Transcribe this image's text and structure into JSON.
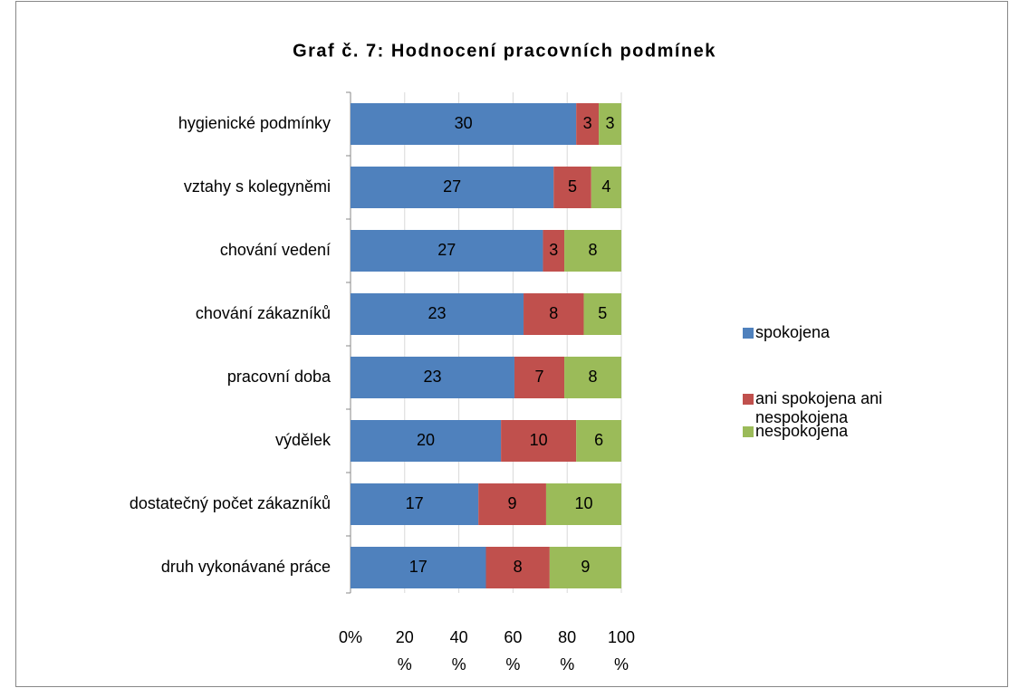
{
  "chart_data": {
    "type": "bar",
    "orientation": "horizontal",
    "stacked": "percent",
    "title": "Graf č. 7: Hodnocení pracovních podmínek",
    "categories": [
      "hygienické podmínky",
      "vztahy s kolegyněmi",
      "chování vedení",
      "chování zákazníků",
      "pracovní doba",
      "výdělek",
      "dostatečný počet zákazníků",
      "druh vykonávané práce"
    ],
    "series": [
      {
        "name": "spokojena",
        "color": "#4f81bd",
        "values": [
          30,
          27,
          27,
          23,
          23,
          20,
          17,
          17
        ]
      },
      {
        "name": "ani spokojena ani nespokojena",
        "color": "#c0504d",
        "values": [
          3,
          5,
          3,
          8,
          7,
          10,
          9,
          8
        ]
      },
      {
        "name": "nespokojena",
        "color": "#9bbb59",
        "values": [
          3,
          4,
          8,
          5,
          8,
          6,
          10,
          9
        ]
      }
    ],
    "xlim": [
      0,
      100
    ],
    "xticks": [
      {
        "value": 0,
        "label": "0%"
      },
      {
        "value": 20,
        "label": "20 %"
      },
      {
        "value": 40,
        "label": "40 %"
      },
      {
        "value": 60,
        "label": "60 %"
      },
      {
        "value": 80,
        "label": "80 %"
      },
      {
        "value": 100,
        "label": "100 %"
      }
    ],
    "grid": true,
    "legend": "right"
  }
}
